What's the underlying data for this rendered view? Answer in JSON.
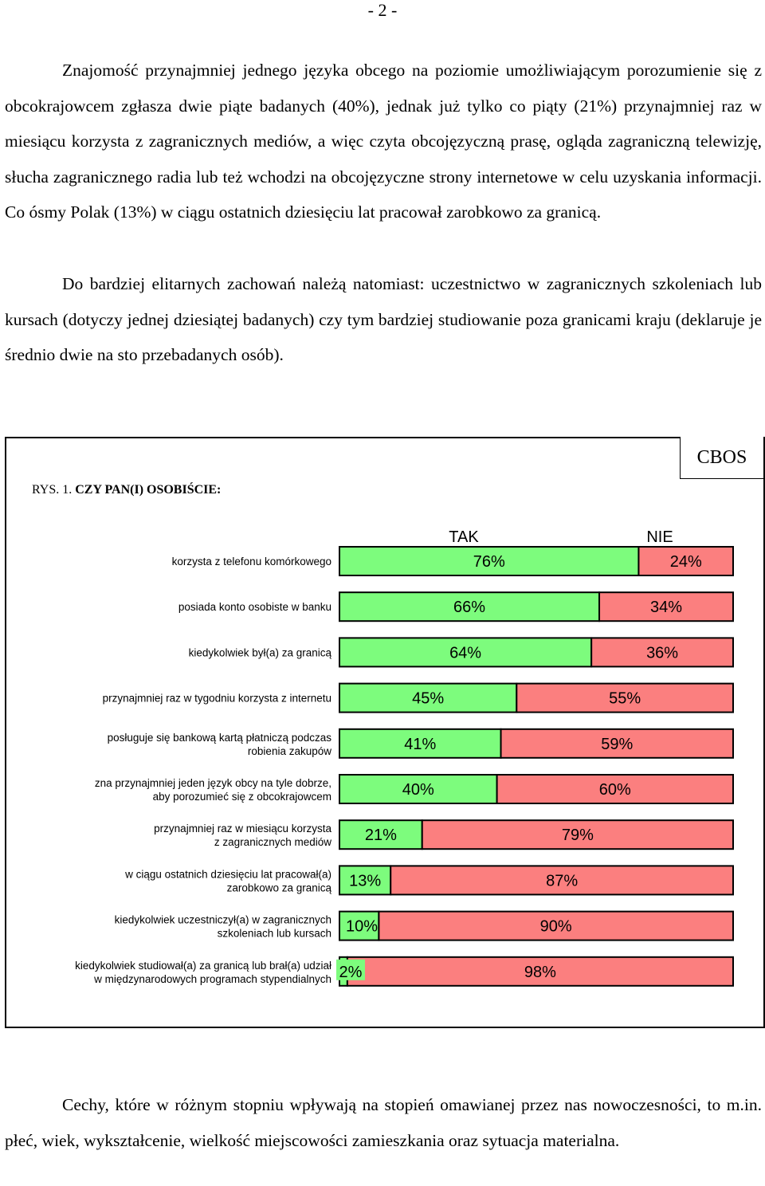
{
  "page": {
    "number": "- 2 -"
  },
  "paragraphs": {
    "p1": "Znajomość przynajmniej jednego języka obcego na poziomie umożliwiającym porozumienie się z obcokrajowcem zgłasza dwie piąte badanych (40%), jednak już tylko co piąty (21%) przynajmniej raz w miesiącu korzysta z zagranicznych mediów, a więc czyta obcojęzyczną prasę, ogląda zagraniczną telewizję, słucha zagranicznego radia lub też wchodzi na obcojęzyczne strony internetowe w celu uzyskania informacji. Co ósmy Polak (13%) w ciągu ostatnich dziesięciu lat pracował zarobkowo za granicą.",
    "p2": "Do bardziej elitarnych zachowań należą natomiast: uczestnictwo w zagranicznych szkoleniach lub kursach (dotyczy jednej dziesiątej badanych) czy tym bardziej studiowanie poza granicami kraju (deklaruje je średnio dwie na sto przebadanych osób).",
    "p3": "Cechy, które w różnym stopniu wpływają na stopień omawianej przez nas nowoczesności, to m.in. płeć, wiek, wykształcenie, wielkość miejscowości zamieszkania oraz sytuacja materialna."
  },
  "figure": {
    "source": "CBOS",
    "title_prefix": "RYS. 1.",
    "title": "CZY PAN(I) OSOBIŚCIE:"
  },
  "chart_data": {
    "type": "bar",
    "stacked": true,
    "orientation": "horizontal",
    "legend": [
      "TAK",
      "NIE"
    ],
    "colors": {
      "TAK": "#7dfc7d",
      "NIE": "#fb7f7f"
    },
    "categories": [
      [
        "korzysta z telefonu komórkowego"
      ],
      [
        "posiada konto osobiste w banku"
      ],
      [
        "kiedykolwiek był(a) za granicą"
      ],
      [
        "przynajmniej raz w tygodniu korzysta z internetu"
      ],
      [
        "posługuje się bankową kartą płatniczą podczas",
        "robienia zakupów"
      ],
      [
        "zna przynajmniej jeden język obcy na tyle dobrze,",
        "aby porozumieć się z obcokrajowcem"
      ],
      [
        "przynajmniej raz w miesiącu korzysta",
        "z zagranicznych mediów"
      ],
      [
        "w ciągu ostatnich dziesięciu lat pracował(a)",
        "zarobkowo za granicą"
      ],
      [
        "kiedykolwiek uczestniczył(a) w zagranicznych",
        "szkoleniach lub kursach"
      ],
      [
        "kiedykolwiek studiował(a) za granicą lub brał(a) udział",
        "w międzynarodowych programach stypendialnych"
      ]
    ],
    "series": [
      {
        "name": "TAK",
        "values": [
          76,
          66,
          64,
          45,
          41,
          40,
          21,
          13,
          10,
          2
        ]
      },
      {
        "name": "NIE",
        "values": [
          24,
          34,
          36,
          55,
          59,
          60,
          79,
          87,
          90,
          98
        ]
      }
    ],
    "value_suffix": "%"
  }
}
